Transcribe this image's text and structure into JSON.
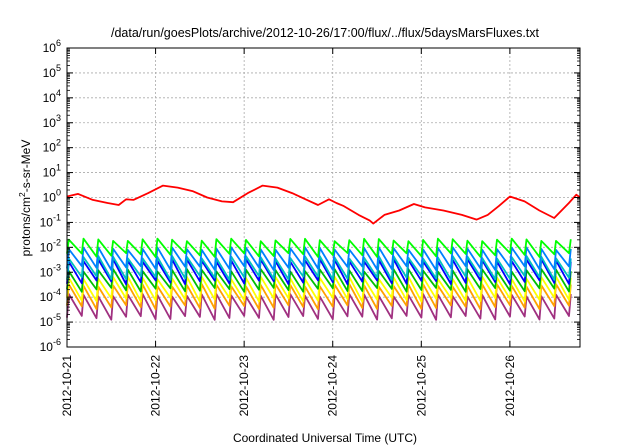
{
  "chart_data": {
    "type": "line",
    "title": "/data/run/goesPlots/archive/2012-10-26/17:00/flux/../flux/5daysMarsFluxes.txt",
    "xlabel": "Coordinated Universal Time (UTC)",
    "ylabel_base": "protons/cm",
    "ylabel_sup": "2",
    "ylabel_rest": "-s-sr-MeV",
    "x_range": [
      "2012-10-21",
      "2012-10-26T19:00"
    ],
    "x_ticks": [
      "2012-10-21",
      "2012-10-22",
      "2012-10-23",
      "2012-10-24",
      "2012-10-25",
      "2012-10-26"
    ],
    "y_scale": "log",
    "y_range": [
      1e-06,
      1000000.0
    ],
    "y_ticks": [
      {
        "value": 1e-06,
        "base": "10",
        "exp": "-6"
      },
      {
        "value": 1e-05,
        "base": "10",
        "exp": "-5"
      },
      {
        "value": 0.0001,
        "base": "10",
        "exp": "-4"
      },
      {
        "value": 0.001,
        "base": "10",
        "exp": "-3"
      },
      {
        "value": 0.01,
        "base": "10",
        "exp": "-2"
      },
      {
        "value": 0.1,
        "base": "10",
        "exp": "-1"
      },
      {
        "value": 1,
        "base": "10",
        "exp": "0"
      },
      {
        "value": 10,
        "base": "10",
        "exp": "1"
      },
      {
        "value": 100,
        "base": "10",
        "exp": "2"
      },
      {
        "value": 1000,
        "base": "10",
        "exp": "3"
      },
      {
        "value": 10000,
        "base": "10",
        "exp": "4"
      },
      {
        "value": 100000,
        "base": "10",
        "exp": "5"
      },
      {
        "value": 1000000,
        "base": "10",
        "exp": "6"
      }
    ],
    "grid": true,
    "sawtooth_period_days": 0.1667,
    "series": [
      {
        "color": "#ff0000",
        "points": [
          [
            "2012-10-21T00:00",
            1.1
          ],
          [
            "2012-10-21T03:00",
            1.4
          ],
          [
            "2012-10-21T07:00",
            0.8
          ],
          [
            "2012-10-21T11:00",
            0.6
          ],
          [
            "2012-10-21T14:00",
            0.5
          ],
          [
            "2012-10-21T16:00",
            0.85
          ],
          [
            "2012-10-21T18:00",
            0.8
          ],
          [
            "2012-10-21T22:00",
            1.5
          ],
          [
            "2012-10-22T02:00",
            3.0
          ],
          [
            "2012-10-22T06:00",
            2.5
          ],
          [
            "2012-10-22T10:00",
            1.8
          ],
          [
            "2012-10-22T14:00",
            1.0
          ],
          [
            "2012-10-22T18:00",
            0.7
          ],
          [
            "2012-10-22T21:00",
            0.65
          ],
          [
            "2012-10-23T01:00",
            1.5
          ],
          [
            "2012-10-23T05:00",
            3.0
          ],
          [
            "2012-10-23T09:00",
            2.5
          ],
          [
            "2012-10-23T13:00",
            1.5
          ],
          [
            "2012-10-23T17:00",
            0.8
          ],
          [
            "2012-10-23T20:00",
            0.5
          ],
          [
            "2012-10-23T23:00",
            0.85
          ],
          [
            "2012-10-24T01:00",
            0.6
          ],
          [
            "2012-10-24T03:00",
            0.45
          ],
          [
            "2012-10-24T07:00",
            0.2
          ],
          [
            "2012-10-24T10:00",
            0.12
          ],
          [
            "2012-10-24T11:00",
            0.09
          ],
          [
            "2012-10-24T14:00",
            0.2
          ],
          [
            "2012-10-24T18:00",
            0.3
          ],
          [
            "2012-10-24T22:00",
            0.55
          ],
          [
            "2012-10-25T01:00",
            0.4
          ],
          [
            "2012-10-25T06:00",
            0.3
          ],
          [
            "2012-10-25T11:00",
            0.2
          ],
          [
            "2012-10-25T15:00",
            0.13
          ],
          [
            "2012-10-25T18:00",
            0.2
          ],
          [
            "2012-10-25T21:00",
            0.45
          ],
          [
            "2012-10-26T00:00",
            1.1
          ],
          [
            "2012-10-26T04:00",
            0.7
          ],
          [
            "2012-10-26T08:00",
            0.3
          ],
          [
            "2012-10-26T12:00",
            0.15
          ],
          [
            "2012-10-26T16:00",
            0.6
          ],
          [
            "2012-10-26T18:00",
            1.3
          ],
          [
            "2012-10-26T19:00",
            1.0
          ]
        ]
      },
      {
        "color": "#00ff00",
        "low": 0.005,
        "high": 0.02
      },
      {
        "color": "#0080ff",
        "low": 0.0015,
        "high": 0.009
      },
      {
        "color": "#00c0c0",
        "low": 0.0006,
        "high": 0.004
      },
      {
        "color": "#0000ff",
        "low": 0.0004,
        "high": 0.003
      },
      {
        "color": "#00c000",
        "low": 0.0002,
        "high": 0.0012
      },
      {
        "color": "#ffff00",
        "low": 8e-05,
        "high": 0.0006
      },
      {
        "color": "#ffa000",
        "low": 4e-05,
        "high": 0.0003
      },
      {
        "color": "#a03080",
        "low": 1.5e-05,
        "high": 0.00012
      }
    ]
  }
}
